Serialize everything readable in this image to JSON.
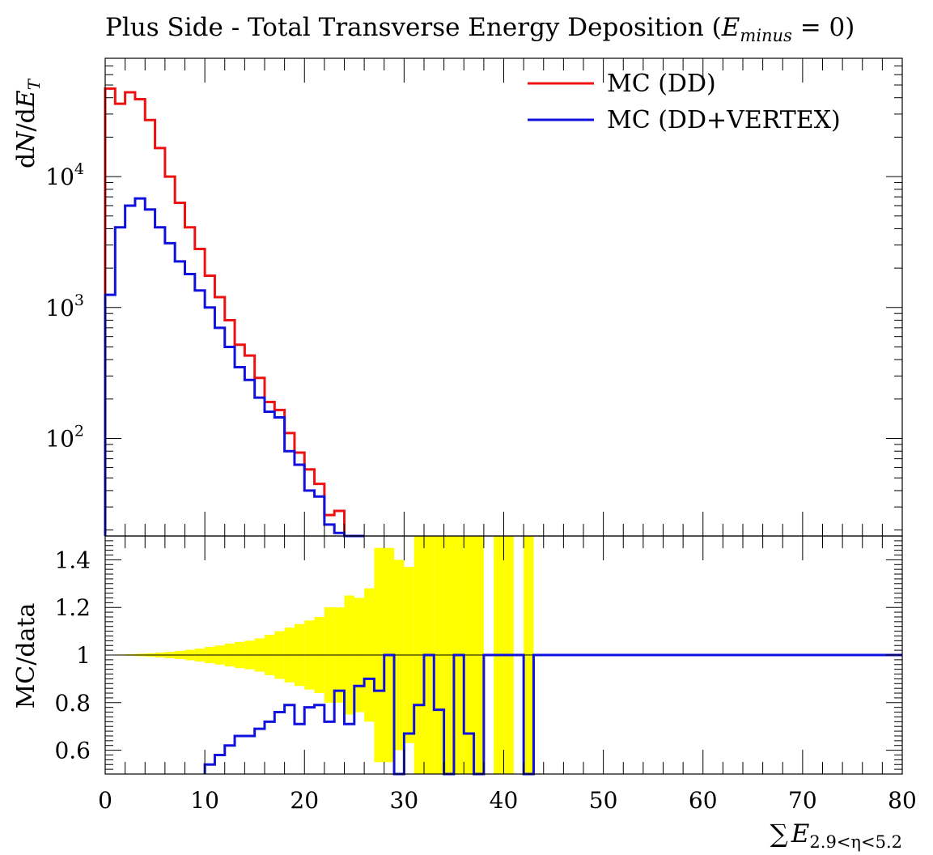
{
  "chart_data": {
    "type": "line",
    "title": "Plus Side - Total Transverse Energy Deposition (",
    "title_math": "E",
    "title_math_sub": "minus",
    "title_tail": " = 0)",
    "top_panel": {
      "ylabel_pre": "d",
      "ylabel_N": "N",
      "ylabel_mid": "/d",
      "ylabel_E": "E",
      "ylabel_sub": "T",
      "yscale": "log",
      "ylim": [
        18,
        80000
      ],
      "yticks": [
        {
          "value": 100,
          "base": "10",
          "exp": "2"
        },
        {
          "value": 1000,
          "base": "10",
          "exp": "3"
        },
        {
          "value": 10000,
          "base": "10",
          "exp": "4"
        }
      ],
      "legend": [
        {
          "label": "MC (DD)",
          "color": "#ee1111"
        },
        {
          "label": "MC (DD+VERTEX)",
          "color": "#1111dd"
        }
      ],
      "legend_position": "top-right",
      "series": [
        {
          "name": "MC (DD)",
          "color": "#ee1111",
          "edges": [
            0,
            1,
            2,
            3,
            4,
            5,
            6,
            7,
            8,
            9,
            10,
            11,
            12,
            13,
            14,
            15,
            16,
            17,
            18,
            19,
            20,
            21,
            22,
            23,
            24,
            25,
            26
          ],
          "values": [
            47000,
            36000,
            44000,
            39000,
            27000,
            16500,
            10000,
            6300,
            4100,
            2800,
            1750,
            1200,
            800,
            520,
            430,
            290,
            190,
            165,
            110,
            78,
            58,
            45,
            26,
            28,
            17,
            18
          ]
        },
        {
          "name": "MC (DD+VERTEX)",
          "color": "#1111dd",
          "edges": [
            0,
            1,
            2,
            3,
            4,
            5,
            6,
            7,
            8,
            9,
            10,
            11,
            12,
            13,
            14,
            15,
            16,
            17,
            18,
            19,
            20,
            21,
            22,
            23,
            24,
            25,
            26
          ],
          "values": [
            1250,
            4100,
            6000,
            6800,
            5600,
            4100,
            3100,
            2250,
            1800,
            1350,
            1000,
            700,
            500,
            350,
            280,
            205,
            160,
            145,
            80,
            63,
            40,
            36,
            22,
            19,
            16,
            17
          ]
        }
      ]
    },
    "ratio_panel": {
      "ylabel": "MC/data",
      "ylim": [
        0.5,
        1.5
      ],
      "yticks": [
        "0.6",
        "0.8",
        "1",
        "1.2",
        "1.4"
      ],
      "ytick_values": [
        0.6,
        0.8,
        1.0,
        1.2,
        1.4
      ],
      "band_color": "#ffff00",
      "band": [
        {
          "x0": 0,
          "x1": 1,
          "lo": 0.999,
          "hi": 1.001
        },
        {
          "x0": 1,
          "x1": 2,
          "lo": 0.998,
          "hi": 1.002
        },
        {
          "x0": 2,
          "x1": 3,
          "lo": 0.997,
          "hi": 1.003
        },
        {
          "x0": 3,
          "x1": 4,
          "lo": 0.995,
          "hi": 1.005
        },
        {
          "x0": 4,
          "x1": 5,
          "lo": 0.993,
          "hi": 1.007
        },
        {
          "x0": 5,
          "x1": 6,
          "lo": 0.99,
          "hi": 1.01
        },
        {
          "x0": 6,
          "x1": 7,
          "lo": 0.987,
          "hi": 1.013
        },
        {
          "x0": 7,
          "x1": 8,
          "lo": 0.983,
          "hi": 1.017
        },
        {
          "x0": 8,
          "x1": 9,
          "lo": 0.978,
          "hi": 1.022
        },
        {
          "x0": 9,
          "x1": 10,
          "lo": 0.973,
          "hi": 1.027
        },
        {
          "x0": 10,
          "x1": 11,
          "lo": 0.966,
          "hi": 1.034
        },
        {
          "x0": 11,
          "x1": 12,
          "lo": 0.96,
          "hi": 1.04
        },
        {
          "x0": 12,
          "x1": 13,
          "lo": 0.952,
          "hi": 1.048
        },
        {
          "x0": 13,
          "x1": 14,
          "lo": 0.945,
          "hi": 1.055
        },
        {
          "x0": 14,
          "x1": 15,
          "lo": 0.94,
          "hi": 1.06
        },
        {
          "x0": 15,
          "x1": 16,
          "lo": 0.93,
          "hi": 1.07
        },
        {
          "x0": 16,
          "x1": 17,
          "lo": 0.915,
          "hi": 1.085
        },
        {
          "x0": 17,
          "x1": 18,
          "lo": 0.9,
          "hi": 1.1
        },
        {
          "x0": 18,
          "x1": 19,
          "lo": 0.885,
          "hi": 1.115
        },
        {
          "x0": 19,
          "x1": 20,
          "lo": 0.87,
          "hi": 1.13
        },
        {
          "x0": 20,
          "x1": 21,
          "lo": 0.855,
          "hi": 1.145
        },
        {
          "x0": 21,
          "x1": 22,
          "lo": 0.84,
          "hi": 1.16
        },
        {
          "x0": 22,
          "x1": 23,
          "lo": 0.8,
          "hi": 1.2
        },
        {
          "x0": 23,
          "x1": 24,
          "lo": 0.8,
          "hi": 1.2
        },
        {
          "x0": 24,
          "x1": 25,
          "lo": 0.75,
          "hi": 1.25
        },
        {
          "x0": 25,
          "x1": 26,
          "lo": 0.76,
          "hi": 1.24
        },
        {
          "x0": 26,
          "x1": 27,
          "lo": 0.72,
          "hi": 1.28
        },
        {
          "x0": 27,
          "x1": 28,
          "lo": 0.55,
          "hi": 1.45
        },
        {
          "x0": 28,
          "x1": 29,
          "lo": 0.55,
          "hi": 1.45
        },
        {
          "x0": 29,
          "x1": 30,
          "lo": 0.6,
          "hi": 1.4
        },
        {
          "x0": 30,
          "x1": 31,
          "lo": 0.63,
          "hi": 1.37
        },
        {
          "x0": 31,
          "x1": 32,
          "lo": 0.5,
          "hi": 1.5
        },
        {
          "x0": 32,
          "x1": 33,
          "lo": 0.5,
          "hi": 1.5
        },
        {
          "x0": 33,
          "x1": 34,
          "lo": 0.5,
          "hi": 1.5
        },
        {
          "x0": 34,
          "x1": 35,
          "lo": 0.5,
          "hi": 1.5
        },
        {
          "x0": 35,
          "x1": 36,
          "lo": 0.5,
          "hi": 1.5
        },
        {
          "x0": 36,
          "x1": 37,
          "lo": 0.5,
          "hi": 1.5
        },
        {
          "x0": 37,
          "x1": 38,
          "lo": 0.5,
          "hi": 1.5
        },
        {
          "x0": 39,
          "x1": 41,
          "lo": 0.5,
          "hi": 1.5
        },
        {
          "x0": 42,
          "x1": 43,
          "lo": 0.5,
          "hi": 1.5
        }
      ],
      "series": [
        {
          "name": "MC (DD+VERTEX)",
          "color": "#1111dd",
          "edges": [
            10,
            11,
            12,
            13,
            14,
            15,
            16,
            17,
            18,
            19,
            20,
            21,
            22,
            23,
            24,
            25,
            26,
            27,
            28,
            29,
            30,
            31,
            32,
            33,
            34,
            35,
            36,
            37,
            38,
            39,
            40,
            41,
            42,
            43,
            80
          ],
          "values": [
            0.54,
            0.58,
            0.62,
            0.66,
            0.66,
            0.69,
            0.72,
            0.76,
            0.79,
            0.71,
            0.78,
            0.79,
            0.72,
            0.85,
            0.71,
            0.87,
            0.9,
            0.85,
            1.0,
            0.5,
            0.67,
            0.79,
            1.0,
            0.77,
            0.5,
            1.0,
            0.67,
            0.5,
            1.0,
            1.0,
            1.0,
            1.0,
            0.5,
            1.0
          ]
        }
      ]
    },
    "x": {
      "range": [
        0,
        80
      ],
      "ticks": [
        "0",
        "10",
        "20",
        "30",
        "40",
        "50",
        "60",
        "70",
        "80"
      ],
      "tick_values": [
        0,
        10,
        20,
        30,
        40,
        50,
        60,
        70,
        80
      ],
      "xlabel_sum": "∑",
      "xlabel_E": "E",
      "xlabel_sub": "2.9<η<5.2"
    },
    "grid": false
  }
}
